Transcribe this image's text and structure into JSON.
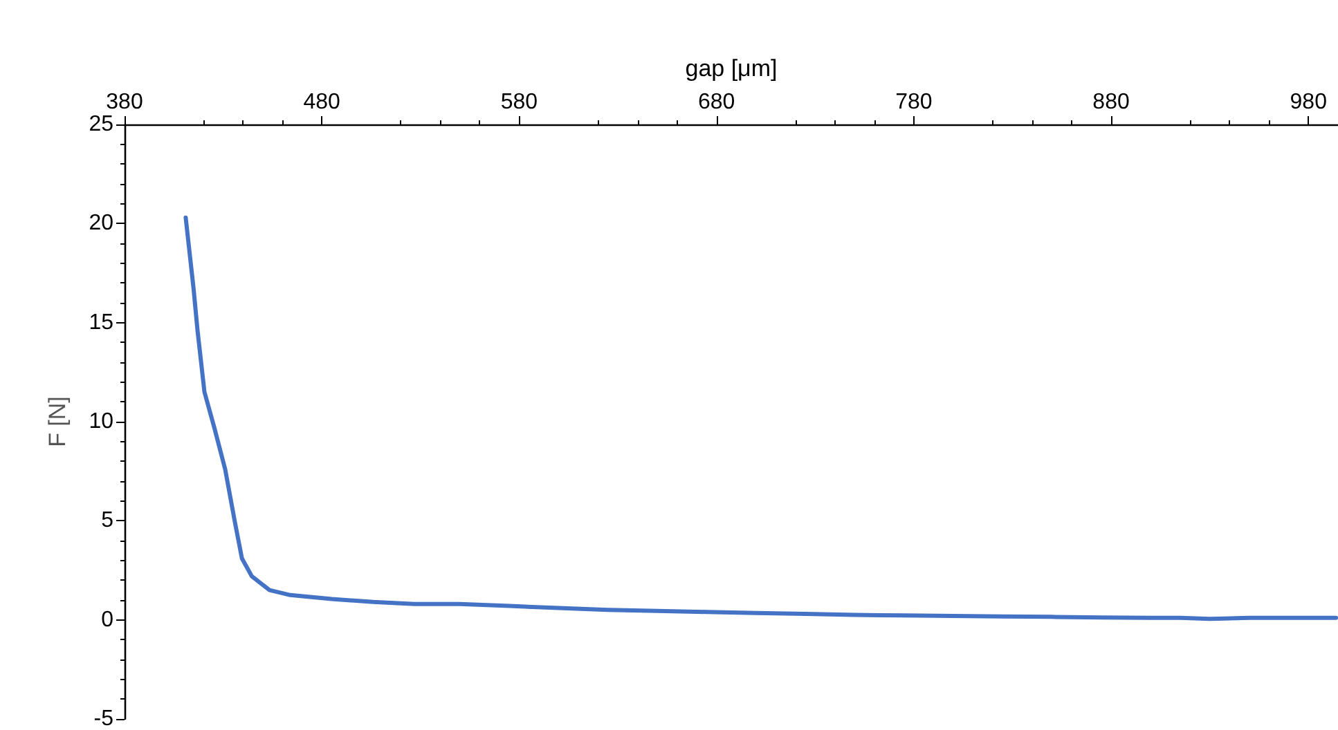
{
  "chart_data": {
    "type": "line",
    "xlabel": "gap [μm]",
    "ylabel": "F [N]",
    "xlim": [
      380,
      995
    ],
    "xticks": [
      380,
      480,
      580,
      680,
      780,
      880,
      980
    ],
    "ylim": [
      -5,
      25
    ],
    "yticks": [
      -5,
      0,
      5,
      10,
      15,
      20,
      25
    ],
    "grid": false,
    "marker": "none",
    "line_style": "solid",
    "series": [
      {
        "color": "#4472c4",
        "x": [
          411,
          415,
          417,
          420.5,
          425.5,
          431,
          436,
          439.5,
          444.5,
          453.5,
          464,
          485,
          506,
          527,
          550,
          575,
          600,
          625,
          650,
          675,
          700,
          725,
          750,
          775,
          800,
          825,
          850,
          875,
          900,
          915,
          930,
          950,
          970,
          994
        ],
        "values": [
          20.3,
          16.7,
          14.6,
          11.5,
          9.7,
          7.6,
          4.9,
          3.1,
          2.2,
          1.5,
          1.25,
          1.05,
          0.9,
          0.8,
          0.8,
          0.7,
          0.6,
          0.5,
          0.45,
          0.4,
          0.35,
          0.3,
          0.25,
          0.22,
          0.2,
          0.17,
          0.15,
          0.12,
          0.1,
          0.1,
          0.05,
          0.1,
          0.1,
          0.1
        ]
      }
    ]
  }
}
